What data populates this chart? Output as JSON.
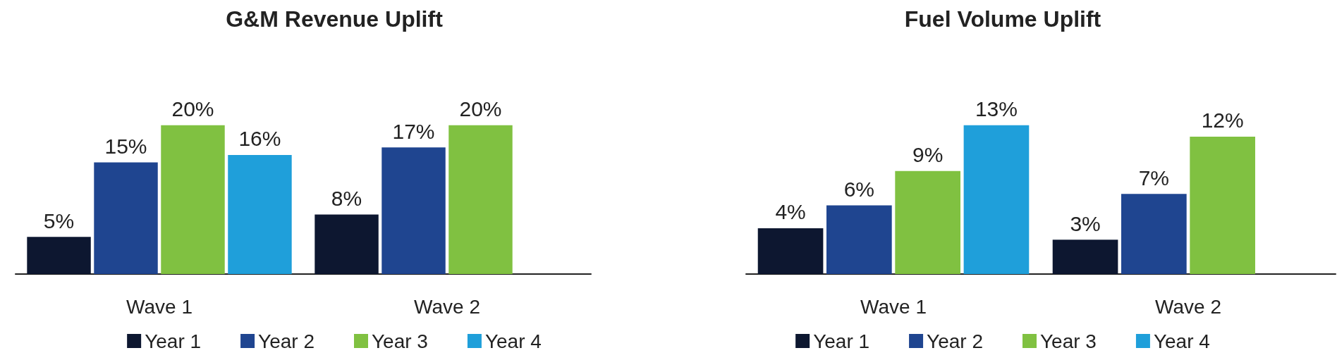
{
  "chart_data": [
    {
      "type": "bar",
      "title": "G&M Revenue Uplift",
      "categories": [
        "Wave 1",
        "Wave 2"
      ],
      "series": [
        {
          "name": "Year 1",
          "color": "#0d1730",
          "values": [
            5,
            8
          ],
          "value_labels": [
            "5%",
            "8%"
          ]
        },
        {
          "name": "Year 2",
          "color": "#1f4590",
          "values": [
            15,
            17
          ],
          "value_labels": [
            "15%",
            "17%"
          ]
        },
        {
          "name": "Year 3",
          "color": "#80c141",
          "values": [
            20,
            20
          ],
          "value_labels": [
            "20%",
            "20%"
          ]
        },
        {
          "name": "Year 4",
          "color": "#1f9fda",
          "values": [
            16,
            null
          ],
          "value_labels": [
            "16%",
            null
          ]
        }
      ],
      "legend": "bottom"
    },
    {
      "type": "bar",
      "title": "Fuel Volume Uplift",
      "categories": [
        "Wave 1",
        "Wave 2"
      ],
      "series": [
        {
          "name": "Year 1",
          "color": "#0d1730",
          "values": [
            4,
            3
          ],
          "value_labels": [
            "4%",
            "3%"
          ]
        },
        {
          "name": "Year 2",
          "color": "#1f4590",
          "values": [
            6,
            7
          ],
          "value_labels": [
            "6%",
            "7%"
          ]
        },
        {
          "name": "Year 3",
          "color": "#80c141",
          "values": [
            9,
            12
          ],
          "value_labels": [
            "9%",
            "12%"
          ]
        },
        {
          "name": "Year 4",
          "color": "#1f9fda",
          "values": [
            13,
            null
          ],
          "value_labels": [
            "13%",
            null
          ]
        }
      ],
      "legend": "bottom"
    }
  ]
}
